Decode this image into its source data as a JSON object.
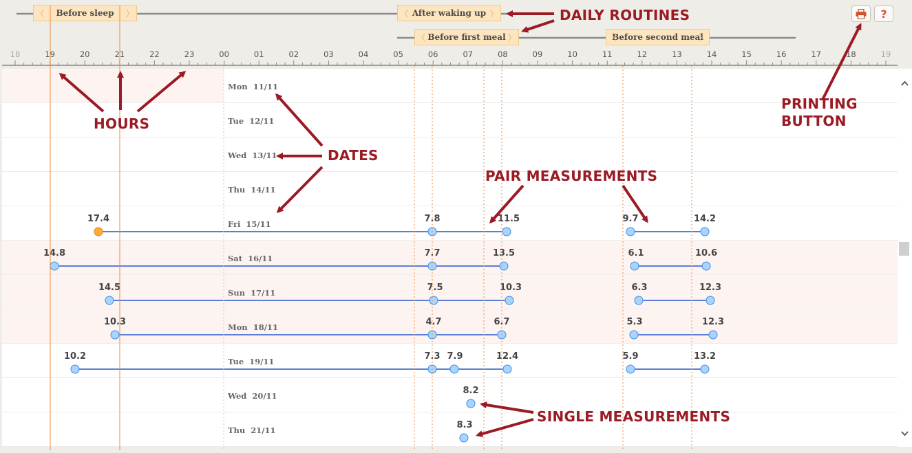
{
  "routines": [
    {
      "label": "Before sleep"
    },
    {
      "label": "After waking up"
    },
    {
      "label": "Before first meal"
    },
    {
      "label": "Before second meal"
    }
  ],
  "hours": [
    "18",
    "19",
    "20",
    "21",
    "22",
    "23",
    "00",
    "01",
    "02",
    "03",
    "04",
    "05",
    "06",
    "07",
    "08",
    "09",
    "10",
    "11",
    "12",
    "13",
    "14",
    "15",
    "16",
    "17",
    "18",
    "19"
  ],
  "days": [
    {
      "day": "Mon",
      "date": "11/11",
      "highlight": true
    },
    {
      "day": "Tue",
      "date": "12/11",
      "highlight": false
    },
    {
      "day": "Wed",
      "date": "13/11",
      "highlight": false
    },
    {
      "day": "Thu",
      "date": "14/11",
      "highlight": false
    },
    {
      "day": "Fri",
      "date": "15/11",
      "highlight": false
    },
    {
      "day": "Sat",
      "date": "16/11",
      "highlight": true
    },
    {
      "day": "Sun",
      "date": "17/11",
      "highlight": true
    },
    {
      "day": "Mon",
      "date": "18/11",
      "highlight": true
    },
    {
      "day": "Tue",
      "date": "19/11",
      "highlight": false
    },
    {
      "day": "Wed",
      "date": "20/11",
      "highlight": false
    },
    {
      "day": "Thu",
      "date": "21/11",
      "highlight": false
    }
  ],
  "measurements": [
    {
      "row": 4,
      "values": [
        "17.4",
        "7.8",
        "11.5",
        "9.7",
        "14.2"
      ]
    },
    {
      "row": 5,
      "values": [
        "14.8",
        "7.7",
        "13.5",
        "6.1",
        "10.6"
      ]
    },
    {
      "row": 6,
      "values": [
        "14.5",
        "7.5",
        "10.3",
        "6.3",
        "12.3"
      ]
    },
    {
      "row": 7,
      "values": [
        "10.3",
        "4.7",
        "6.7",
        "5.3",
        "12.3"
      ]
    },
    {
      "row": 8,
      "values": [
        "10.2",
        "7.3",
        "7.9",
        "12.4",
        "5.9",
        "13.2"
      ]
    },
    {
      "row": 9,
      "values": [
        "8.2"
      ]
    },
    {
      "row": 10,
      "values": [
        "8.3"
      ]
    }
  ],
  "annotations": {
    "daily_routines": "DAILY ROUTINES",
    "hours": "HOURS",
    "dates": "DATES",
    "pair": "PAIR MEASUREMENTS",
    "printing_1": "PRINTING",
    "printing_2": "BUTTON",
    "single": "SINGLE MEASUREMENTS"
  },
  "buttons": {
    "print_icon": "printer-icon",
    "help": "?"
  },
  "colors": {
    "accent_red": "#9b1a24",
    "point_blue": "#a8d4ff",
    "point_orange": "#ffa939",
    "routine_bg": "#fde6bf",
    "line_blue": "#5b7fd6"
  }
}
